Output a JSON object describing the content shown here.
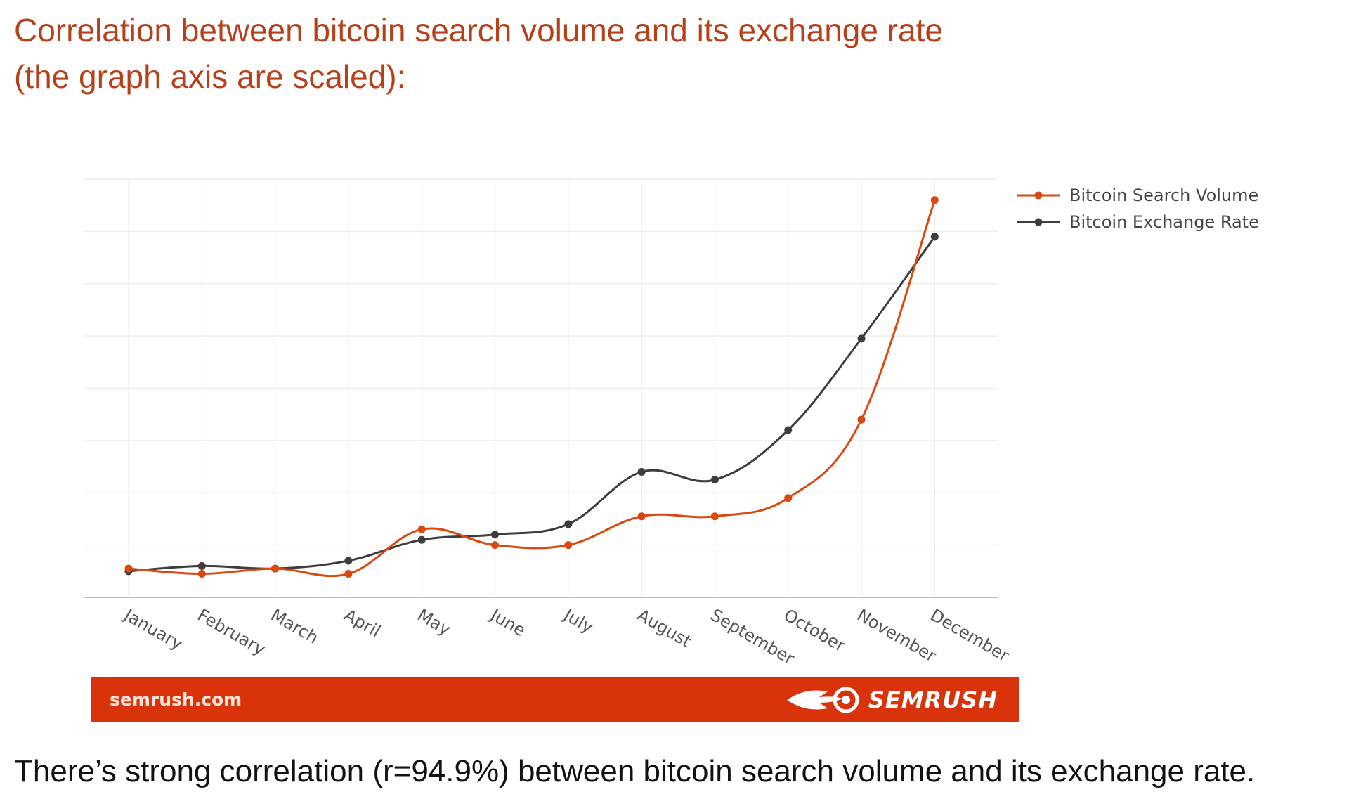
{
  "heading": {
    "line1": "Correlation between bitcoin search volume and its exchange rate",
    "line2": "(the graph axis are scaled):"
  },
  "chart_data": {
    "type": "line",
    "title": "",
    "xlabel": "",
    "ylabel": "",
    "categories": [
      "January",
      "February",
      "March",
      "April",
      "May",
      "June",
      "July",
      "August",
      "September",
      "October",
      "November",
      "December"
    ],
    "series": [
      {
        "name": "Bitcoin Search Volume",
        "color": "#d9480f",
        "values": [
          5.5,
          4.5,
          5.5,
          4.5,
          13,
          10,
          10,
          15.5,
          15.5,
          19,
          34,
          76
        ]
      },
      {
        "name": "Bitcoin Exchange Rate",
        "color": "#3d3d3d",
        "values": [
          5,
          6,
          5.5,
          7,
          11,
          12,
          14,
          24,
          22.5,
          32,
          49.5,
          69
        ]
      }
    ],
    "ylim": [
      0,
      80
    ],
    "yaxis_ticks_labeled": false,
    "grid": true,
    "legend": "top-right"
  },
  "banner": {
    "site": "semrush.com",
    "brand": "SEMRUSH",
    "logo_icon": "semrush-fireball-icon",
    "background": "#d9330b"
  },
  "conclusion": "There’s strong correlation (r=94.9%) between bitcoin search volume and its exchange rate."
}
